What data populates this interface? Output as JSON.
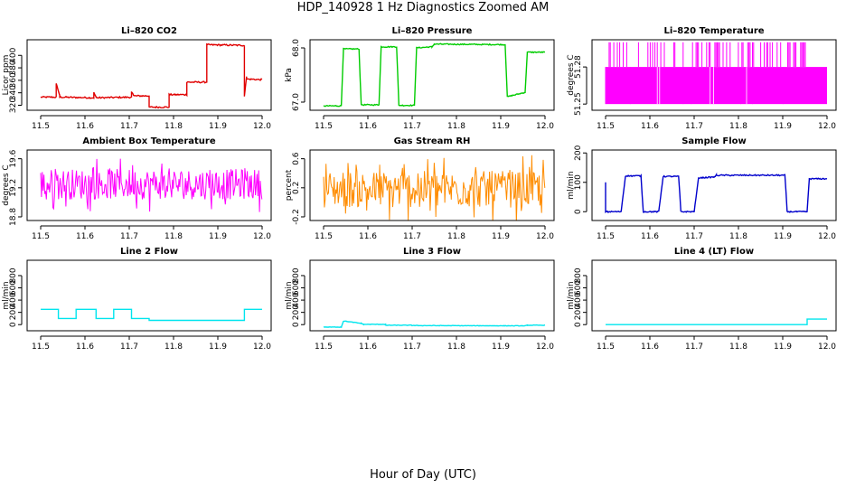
{
  "page": {
    "title": "HDP_140928  1 Hz Diagnostics Zoomed AM",
    "xlabel": "Hour of Day (UTC)"
  },
  "chart_data": [
    {
      "id": "co2",
      "type": "line",
      "title": "Li–820 CO2",
      "ylabel": "Licor ppm",
      "color": "#e00000",
      "xlim": [
        11.5,
        12.0
      ],
      "ylim": [
        312,
        425
      ],
      "xticks": [
        "11.5",
        "11.6",
        "11.7",
        "11.8",
        "11.9",
        "12.0"
      ],
      "yticks": [
        {
          "v": 320,
          "label": "320"
        },
        {
          "v": 340,
          "label": "340"
        },
        {
          "v": 360,
          "label": "360"
        },
        {
          "v": 380,
          "label": "380"
        },
        {
          "v": 400,
          "label": "400"
        }
      ],
      "noise": 1.2,
      "shape": "step",
      "x": [
        11.5,
        11.535,
        11.535,
        11.543,
        11.543,
        11.62,
        11.62,
        11.625,
        11.625,
        11.705,
        11.705,
        11.71,
        11.71,
        11.745,
        11.745,
        11.79,
        11.79,
        11.83,
        11.83,
        11.875,
        11.875,
        11.96,
        11.96,
        11.965,
        11.965,
        12.0
      ],
      "y": [
        333,
        333,
        355,
        336,
        333,
        332,
        340,
        333,
        332,
        333,
        341,
        336,
        335,
        335,
        317,
        317,
        337,
        337,
        357,
        357,
        417,
        416,
        335,
        365,
        362,
        361
      ]
    },
    {
      "id": "pressure",
      "type": "line",
      "title": "Li–820 Pressure",
      "ylabel": "kPa",
      "color": "#00cc00",
      "xlim": [
        11.5,
        12.0
      ],
      "ylim": [
        66.85,
        68.15
      ],
      "xticks": [
        "11.5",
        "11.6",
        "11.7",
        "11.8",
        "11.9",
        "12.0"
      ],
      "yticks": [
        {
          "v": 67.0,
          "label": "67.0"
        },
        {
          "v": 68.0,
          "label": "68.0"
        }
      ],
      "noise": 0.01,
      "shape": "step",
      "x": [
        11.5,
        11.54,
        11.545,
        11.58,
        11.585,
        11.625,
        11.63,
        11.665,
        11.67,
        11.705,
        11.71,
        11.745,
        11.75,
        11.91,
        11.915,
        11.955,
        11.96,
        12.0
      ],
      "y": [
        66.93,
        66.93,
        67.98,
        67.98,
        66.95,
        66.95,
        68.02,
        68.02,
        66.94,
        66.94,
        68.0,
        68.02,
        68.07,
        68.06,
        67.1,
        67.18,
        67.92,
        67.92
      ]
    },
    {
      "id": "temperature",
      "type": "bars",
      "title": "Li–820 Temperature",
      "ylabel": "degrees C",
      "color": "#ff00ff",
      "xlim": [
        11.5,
        12.0
      ],
      "ylim": [
        51.245,
        51.302
      ],
      "xticks": [
        "11.5",
        "11.6",
        "11.7",
        "11.8",
        "11.9",
        "12.0"
      ],
      "yticks": [
        {
          "v": 51.25,
          "label": "51.25"
        },
        {
          "v": 51.28,
          "label": "51.28"
        }
      ],
      "base": 51.25,
      "level": 51.28,
      "spike": 51.3
    },
    {
      "id": "ambient",
      "type": "noise",
      "title": "Ambient Box Temperature",
      "ylabel": "degrees C",
      "color": "#ff00ff",
      "xlim": [
        11.5,
        12.0
      ],
      "ylim": [
        18.75,
        19.72
      ],
      "xticks": [
        "11.5",
        "11.6",
        "11.7",
        "11.8",
        "11.9",
        "12.0"
      ],
      "yticks": [
        {
          "v": 18.8,
          "label": "18.8"
        },
        {
          "v": 19.2,
          "label": "19.2"
        },
        {
          "v": 19.6,
          "label": "19.6"
        }
      ],
      "center": 19.25,
      "spread": 0.3
    },
    {
      "id": "rh",
      "type": "noise",
      "title": "Gas Stream RH",
      "ylabel": "percent",
      "color": "#ff8c00",
      "xlim": [
        11.5,
        12.0
      ],
      "ylim": [
        -0.25,
        0.72
      ],
      "xticks": [
        "11.5",
        "11.6",
        "11.7",
        "11.8",
        "11.9",
        "12.0"
      ],
      "yticks": [
        {
          "v": -0.2,
          "label": "-0.2"
        },
        {
          "v": 0.2,
          "label": "0.2"
        },
        {
          "v": 0.6,
          "label": "0.6"
        }
      ],
      "center": 0.18,
      "spread": 0.36
    },
    {
      "id": "sample_flow",
      "type": "line",
      "title": "Sample Flow",
      "ylabel": "ml/min",
      "color": "#0000cc",
      "xlim": [
        11.5,
        12.0
      ],
      "ylim": [
        -30,
        210
      ],
      "xticks": [
        "11.5",
        "11.6",
        "11.7",
        "11.8",
        "11.9",
        "12.0"
      ],
      "yticks": [
        {
          "v": 0,
          "label": "0"
        },
        {
          "v": 100,
          "label": "100"
        },
        {
          "v": 200,
          "label": "200"
        }
      ],
      "noise": 2,
      "shape": "step",
      "x": [
        11.5,
        11.5,
        11.505,
        11.535,
        11.545,
        11.58,
        11.585,
        11.62,
        11.63,
        11.665,
        11.67,
        11.7,
        11.71,
        11.745,
        11.75,
        11.905,
        11.91,
        11.955,
        11.96,
        12.0
      ],
      "y": [
        100,
        0,
        0,
        0,
        122,
        122,
        0,
        0,
        120,
        120,
        0,
        0,
        115,
        118,
        124,
        124,
        0,
        0,
        112,
        112
      ]
    },
    {
      "id": "line2",
      "type": "line",
      "title": "Line 2 Flow",
      "ylabel": "ml/min",
      "color": "#00e5ee",
      "xlim": [
        11.5,
        12.0
      ],
      "ylim": [
        -100,
        1050
      ],
      "xticks": [
        "11.5",
        "11.6",
        "11.7",
        "11.8",
        "11.9",
        "12.0"
      ],
      "yticks": [
        {
          "v": 0,
          "label": "0"
        },
        {
          "v": 200,
          "label": "200"
        },
        {
          "v": 400,
          "label": "400"
        },
        {
          "v": 600,
          "label": "600"
        },
        {
          "v": 800,
          "label": "800"
        }
      ],
      "noise": 0,
      "shape": "step",
      "x": [
        11.5,
        11.54,
        11.54,
        11.58,
        11.58,
        11.625,
        11.625,
        11.665,
        11.665,
        11.705,
        11.705,
        11.745,
        11.745,
        11.96,
        11.96,
        12.0
      ],
      "y": [
        250,
        250,
        100,
        100,
        250,
        250,
        100,
        100,
        250,
        250,
        100,
        100,
        70,
        70,
        250,
        250
      ]
    },
    {
      "id": "line3",
      "type": "line",
      "title": "Line 3 Flow",
      "ylabel": "ml/min",
      "color": "#00e5ee",
      "xlim": [
        11.5,
        12.0
      ],
      "ylim": [
        -100,
        1050
      ],
      "xticks": [
        "11.5",
        "11.6",
        "11.7",
        "11.8",
        "11.9",
        "12.0"
      ],
      "yticks": [
        {
          "v": 0,
          "label": "0"
        },
        {
          "v": 200,
          "label": "200"
        },
        {
          "v": 400,
          "label": "400"
        },
        {
          "v": 600,
          "label": "600"
        },
        {
          "v": 800,
          "label": "800"
        }
      ],
      "noise": 4,
      "shape": "step",
      "x": [
        11.5,
        11.54,
        11.545,
        11.585,
        11.59,
        11.64,
        11.64,
        11.7,
        11.7,
        11.955,
        11.96,
        12.0
      ],
      "y": [
        -40,
        -40,
        60,
        20,
        5,
        5,
        -10,
        -10,
        -15,
        -20,
        -10,
        -10
      ]
    },
    {
      "id": "line4",
      "type": "line",
      "title": "Line 4 (LT) Flow",
      "ylabel": "ml/min",
      "color": "#00e5ee",
      "xlim": [
        11.5,
        12.0
      ],
      "ylim": [
        -100,
        1050
      ],
      "xticks": [
        "11.5",
        "11.6",
        "11.7",
        "11.8",
        "11.9",
        "12.0"
      ],
      "yticks": [
        {
          "v": 0,
          "label": "0"
        },
        {
          "v": 200,
          "label": "200"
        },
        {
          "v": 400,
          "label": "400"
        },
        {
          "v": 600,
          "label": "600"
        },
        {
          "v": 800,
          "label": "800"
        }
      ],
      "noise": 0,
      "shape": "step",
      "x": [
        11.5,
        11.955,
        11.955,
        12.0
      ],
      "y": [
        0,
        0,
        90,
        90
      ]
    }
  ]
}
